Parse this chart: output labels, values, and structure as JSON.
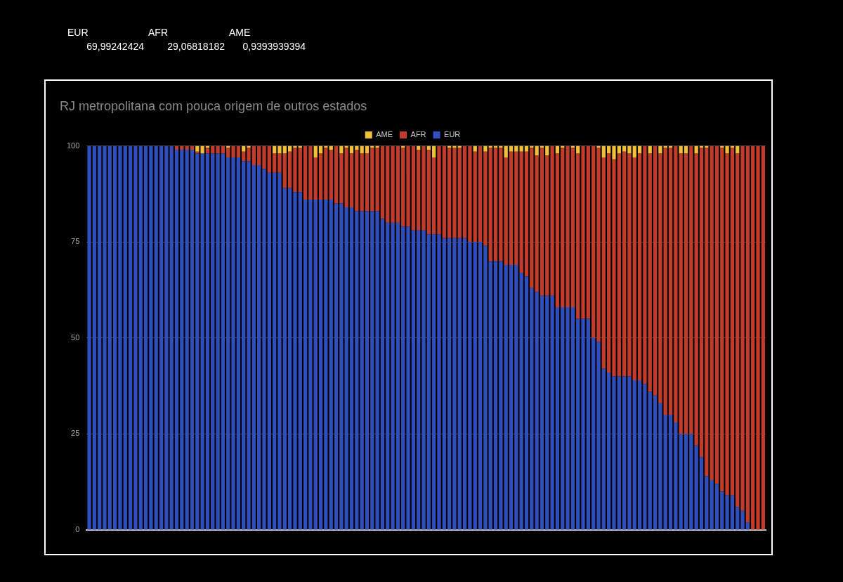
{
  "chart_data": {
    "type": "bar",
    "stacked": true,
    "title": "RJ metropolitana com pouca origem de outros estados",
    "annotations": [
      "EUR",
      "AFR",
      "AME",
      "69,99242424",
      "29,06818182",
      "0,9393939394"
    ],
    "categories": [
      null,
      null,
      null,
      null,
      null,
      null,
      null,
      null,
      null,
      null,
      null,
      null,
      null,
      null,
      null,
      null,
      null,
      null,
      null,
      null,
      null,
      null,
      null,
      null,
      null,
      null,
      null,
      null,
      null,
      null,
      null,
      null,
      null,
      null,
      null,
      null,
      null,
      null,
      null,
      null,
      null,
      null,
      null,
      null,
      null,
      null,
      null,
      null,
      null,
      null,
      null,
      null,
      null,
      null,
      null,
      null,
      null,
      null,
      null,
      null,
      null,
      null,
      null,
      null,
      null,
      null,
      null,
      null,
      null,
      null,
      null,
      null,
      null,
      null,
      null,
      null,
      null,
      null,
      null,
      null,
      null,
      null,
      null,
      null,
      null,
      null,
      null,
      null,
      null,
      null,
      null,
      null,
      null,
      null,
      null,
      null,
      null,
      null,
      null,
      null,
      null,
      null,
      null,
      null,
      null,
      null,
      null,
      null,
      null,
      null,
      null,
      null,
      null,
      null,
      null,
      null,
      null,
      null,
      null,
      null,
      null,
      null,
      null,
      null,
      null,
      null,
      null,
      null,
      null,
      null,
      null,
      null
    ],
    "series": [
      {
        "name": "EUR",
        "color": "#2f4fbf",
        "values": [
          100,
          100,
          100,
          100,
          100,
          100,
          100,
          100,
          100,
          100,
          100,
          100,
          100,
          100,
          100,
          100,
          100,
          99,
          99,
          99,
          99,
          98,
          98,
          98,
          98,
          98,
          98,
          97,
          97,
          97,
          96,
          96,
          95,
          95,
          94,
          93,
          93,
          93,
          89,
          89,
          88,
          88,
          86,
          86,
          86,
          86,
          86,
          86,
          85,
          85,
          84,
          84,
          83,
          83,
          83,
          83,
          83,
          81,
          80,
          80,
          80,
          79,
          79,
          78,
          78,
          78,
          77,
          77,
          77,
          76,
          76,
          76,
          76,
          76,
          75,
          75,
          75,
          74,
          70,
          70,
          70,
          69,
          69,
          69,
          67,
          66,
          63,
          62,
          61,
          61,
          61,
          58,
          58,
          58,
          58,
          55,
          55,
          55,
          50,
          49,
          42,
          41,
          40,
          40,
          40,
          40,
          39,
          39,
          38,
          36,
          35,
          33,
          30,
          30,
          28,
          25,
          25,
          25,
          22,
          19,
          14,
          13,
          12,
          10,
          9,
          9,
          6,
          5,
          2,
          0,
          0,
          0
        ]
      },
      {
        "name": "AFR",
        "color": "#c23b2b",
        "values": [
          0,
          0,
          0,
          0,
          0,
          0,
          0,
          0,
          0,
          0,
          0,
          0,
          0,
          0,
          0,
          0,
          0,
          1,
          1,
          1,
          1,
          0.5,
          0,
          1.5,
          2,
          2,
          2,
          2.5,
          3,
          3,
          2.5,
          3.5,
          5,
          5,
          6,
          7,
          5,
          5,
          9,
          9.5,
          11.5,
          11.5,
          14,
          14,
          11,
          12,
          13.5,
          13,
          15,
          13,
          15.5,
          14,
          16,
          15,
          15,
          16.5,
          16.5,
          19,
          20,
          20,
          20,
          20.5,
          21,
          22,
          21,
          22,
          22,
          20,
          23,
          24,
          23.5,
          23.5,
          23.5,
          24,
          25,
          23.5,
          25,
          24.5,
          29.5,
          29.5,
          29.5,
          28,
          29.5,
          29.5,
          31.5,
          32.5,
          36.5,
          35.5,
          38.5,
          36.5,
          39,
          40,
          41.5,
          42,
          41.5,
          43,
          45,
          45,
          50,
          50.5,
          55,
          57,
          56.5,
          58,
          58.5,
          58,
          58,
          59,
          62,
          62,
          65,
          65,
          69.5,
          69.5,
          72,
          73,
          73,
          75,
          76,
          80.5,
          85.5,
          87,
          88,
          89.5,
          89,
          90.5,
          92,
          95,
          98,
          100,
          100,
          100
        ]
      },
      {
        "name": "AME",
        "color": "#f2c037",
        "values": [
          0,
          0,
          0,
          0,
          0,
          0,
          0,
          0,
          0,
          0,
          0,
          0,
          0,
          0,
          0,
          0,
          0,
          0,
          0,
          0,
          0,
          1.5,
          2,
          0.5,
          0,
          0,
          0,
          0.5,
          0,
          0,
          1.5,
          0.5,
          0,
          0,
          0,
          0,
          2,
          2,
          2,
          1.5,
          0.5,
          0.5,
          0,
          0,
          3,
          2,
          0.5,
          1,
          0,
          2,
          0.5,
          2,
          1,
          2,
          2,
          0.5,
          0.5,
          0,
          0,
          0,
          0,
          0.5,
          0,
          0,
          1,
          0,
          1,
          3,
          0,
          0,
          0.5,
          0.5,
          0.5,
          0,
          0,
          1.5,
          0,
          1.5,
          0.5,
          0.5,
          0.5,
          3,
          1.5,
          1.5,
          1.5,
          1.5,
          0.5,
          2.5,
          0.5,
          2.5,
          0,
          2,
          0.5,
          0,
          0.5,
          2,
          0,
          0,
          0,
          0.5,
          3,
          2,
          3.5,
          2,
          1.5,
          2,
          3,
          2,
          0,
          2,
          0,
          2,
          0.5,
          0.5,
          0,
          2,
          2,
          0,
          2,
          0.5,
          0.5,
          0,
          0,
          0.5,
          2,
          0.5,
          2,
          0,
          0,
          0,
          0,
          0
        ]
      }
    ],
    "ylim": [
      0,
      100
    ],
    "yticks": [
      0,
      25,
      50,
      75,
      100
    ],
    "grid": "y",
    "legend": "top",
    "tick_labels": "y"
  }
}
